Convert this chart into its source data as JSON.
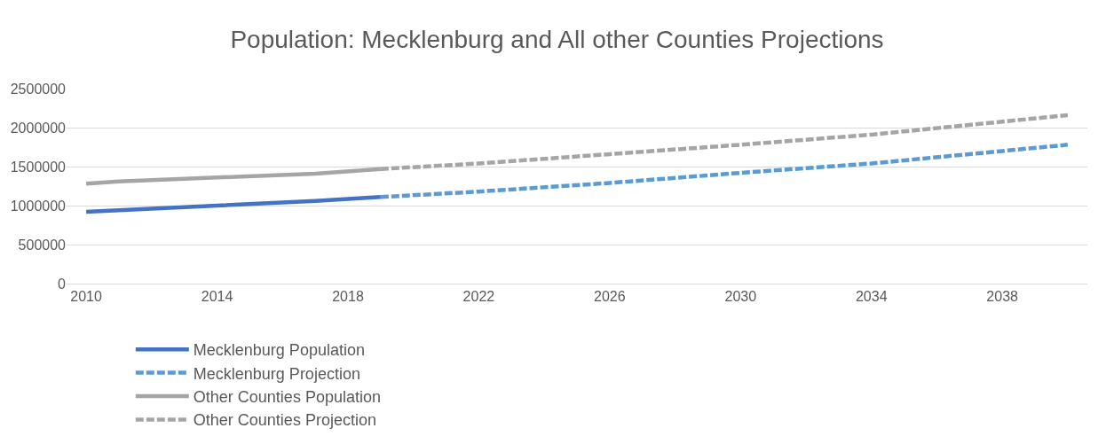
{
  "chart_data": {
    "type": "line",
    "title": "Population: Mecklenburg and All other Counties Projections",
    "xlim": [
      2009.4,
      2040.6
    ],
    "xticks": [
      2010,
      2014,
      2018,
      2022,
      2026,
      2030,
      2034,
      2038
    ],
    "ylim": [
      0,
      2500000
    ],
    "yticks": [
      0,
      500000,
      1000000,
      1500000,
      2000000,
      2500000
    ],
    "grid": "y",
    "legend": "bottom",
    "series": [
      {
        "name": "Mecklenburg Population",
        "color": "#4472c4",
        "line_style": "solid",
        "x": [
          2010,
          2014,
          2017,
          2019
        ],
        "values": [
          920000,
          1000000,
          1060000,
          1110000
        ]
      },
      {
        "name": "Mecklenburg Projection",
        "color": "#5b9bd5",
        "line_style": "dashed",
        "x": [
          2019,
          2022,
          2026,
          2030,
          2034,
          2040
        ],
        "values": [
          1110000,
          1180000,
          1290000,
          1420000,
          1540000,
          1780000
        ]
      },
      {
        "name": "Other Counties Population",
        "color": "#a5a5a5",
        "line_style": "solid",
        "x": [
          2010,
          2011,
          2014,
          2017,
          2019
        ],
        "values": [
          1280000,
          1310000,
          1360000,
          1410000,
          1470000
        ]
      },
      {
        "name": "Other Counties Projection",
        "color": "#a5a5a5",
        "line_style": "dashed",
        "x": [
          2019,
          2022,
          2026,
          2030,
          2034,
          2040
        ],
        "values": [
          1470000,
          1540000,
          1660000,
          1780000,
          1910000,
          2160000
        ]
      }
    ]
  }
}
